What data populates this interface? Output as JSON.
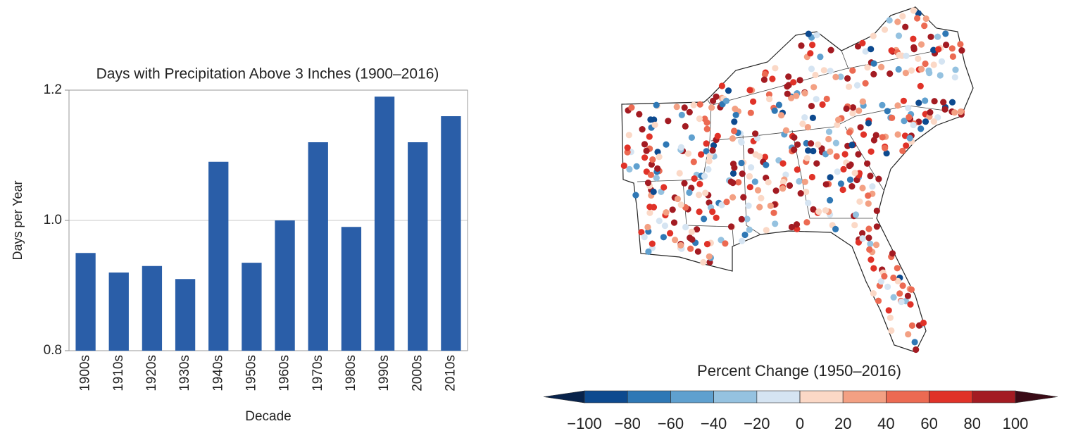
{
  "chart_data": [
    {
      "type": "bar",
      "title": "Days with Precipitation Above 3 Inches (1900–2016)",
      "x_label": "Decade",
      "y_label": "Days per Year",
      "categories": [
        "1900s",
        "1910s",
        "1920s",
        "1930s",
        "1940s",
        "1950s",
        "1960s",
        "1970s",
        "1980s",
        "1990s",
        "2000s",
        "2010s"
      ],
      "values": [
        0.95,
        0.92,
        0.93,
        0.91,
        1.09,
        0.935,
        1.0,
        1.12,
        0.99,
        1.19,
        1.12,
        1.16
      ],
      "color": "#2a5ea8",
      "ylim": [
        0.8,
        1.2
      ],
      "yticks": [
        0.8,
        {
          "value": 1,
          "label": "1.0"
        },
        1.2
      ],
      "grid": true
    },
    {
      "type": "map",
      "title": "Percent Change (1950–2016)",
      "ticks": [
        {
          "value": -100,
          "label": "−100"
        },
        {
          "value": -80,
          "label": "−80"
        },
        {
          "value": -60,
          "label": "−60"
        },
        {
          "value": -40,
          "label": "−40"
        },
        {
          "value": -20,
          "label": "−20"
        },
        0,
        20,
        40,
        60,
        80,
        100
      ],
      "colors": [
        "#0d4a8f",
        "#2f78b5",
        "#5fa0cf",
        "#95c2e0",
        "#d5e4f2",
        "#fbd8c6",
        "#f3a083",
        "#ec6a52",
        "#e03228",
        "#a31b22"
      ],
      "under_color": "#08234b",
      "over_color": "#3a0b16"
    }
  ]
}
